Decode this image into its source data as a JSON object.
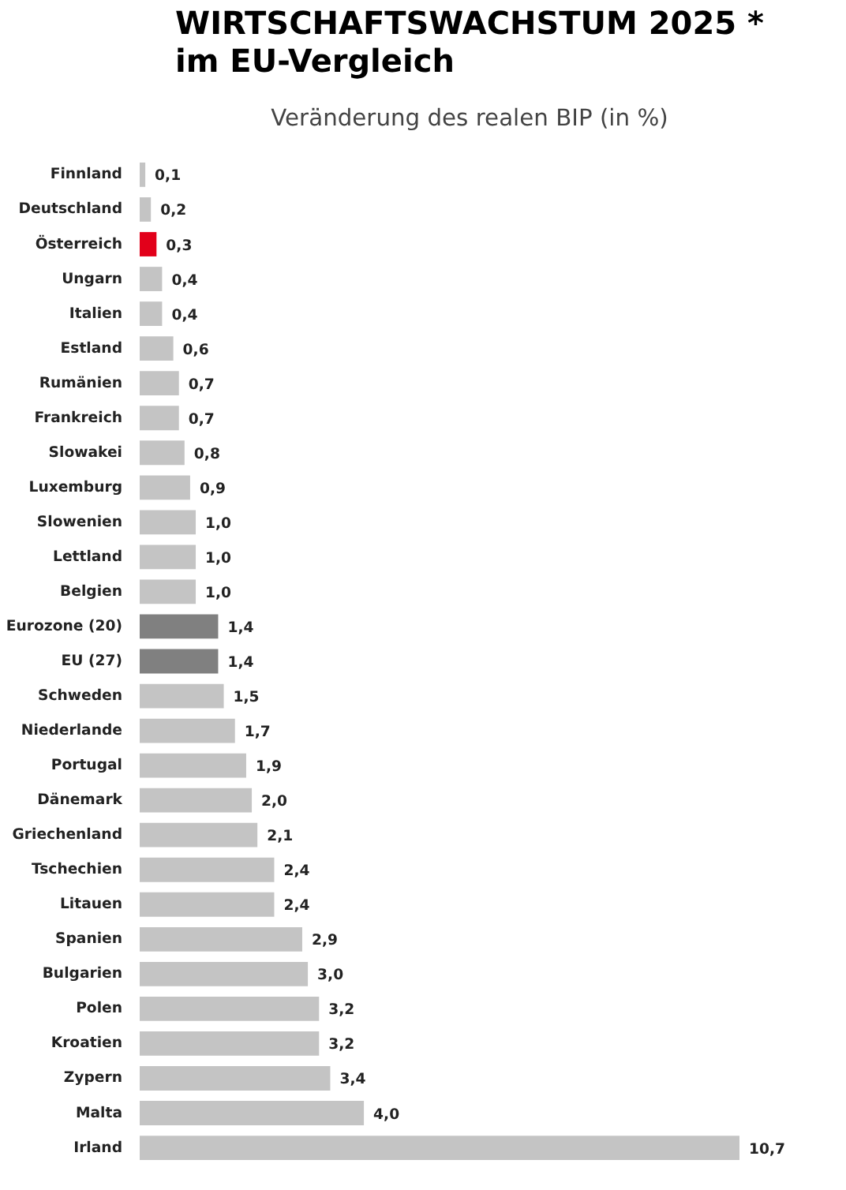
{
  "chart_data": {
    "type": "bar",
    "orientation": "horizontal",
    "title": "WIRTSCHAFTSWACHSTUM 2025 *\nim EU-Vergleich",
    "subtitle": "Veränderung des realen BIP (in %)",
    "categories": [
      "Finnland",
      "Deutschland",
      "Österreich",
      "Ungarn",
      "Italien",
      "Estland",
      "Rumänien",
      "Frankreich",
      "Slowakei",
      "Luxemburg",
      "Slowenien",
      "Lettland",
      "Belgien",
      "Eurozone (20)",
      "EU (27)",
      "Schweden",
      "Niederlande",
      "Portugal",
      "Dänemark",
      "Griechenland",
      "Tschechien",
      "Litauen",
      "Spanien",
      "Bulgarien",
      "Polen",
      "Kroatien",
      "Zypern",
      "Malta",
      "Irland"
    ],
    "values": [
      0.1,
      0.2,
      0.3,
      0.4,
      0.4,
      0.6,
      0.7,
      0.7,
      0.8,
      0.9,
      1.0,
      1.0,
      1.0,
      1.4,
      1.4,
      1.5,
      1.7,
      1.9,
      2.0,
      2.1,
      2.4,
      2.4,
      2.9,
      3.0,
      3.2,
      3.2,
      3.4,
      4.0,
      10.7
    ],
    "value_labels": [
      "0,1",
      "0,2",
      "0,3",
      "0,4",
      "0,4",
      "0,6",
      "0,7",
      "0,7",
      "0,8",
      "0,9",
      "1,0",
      "1,0",
      "1,0",
      "1,4",
      "1,4",
      "1,5",
      "1,7",
      "1,9",
      "2,0",
      "2,1",
      "2,4",
      "2,4",
      "2,9",
      "3,0",
      "3,2",
      "3,2",
      "3,4",
      "4,0",
      "10,7"
    ],
    "colors": [
      "#c4c4c4",
      "#c4c4c4",
      "#e2001a",
      "#c4c4c4",
      "#c4c4c4",
      "#c4c4c4",
      "#c4c4c4",
      "#c4c4c4",
      "#c4c4c4",
      "#c4c4c4",
      "#c4c4c4",
      "#c4c4c4",
      "#c4c4c4",
      "#808080",
      "#808080",
      "#c4c4c4",
      "#c4c4c4",
      "#c4c4c4",
      "#c4c4c4",
      "#c4c4c4",
      "#c4c4c4",
      "#c4c4c4",
      "#c4c4c4",
      "#c4c4c4",
      "#c4c4c4",
      "#c4c4c4",
      "#c4c4c4",
      "#c4c4c4",
      "#c4c4c4"
    ]
  }
}
